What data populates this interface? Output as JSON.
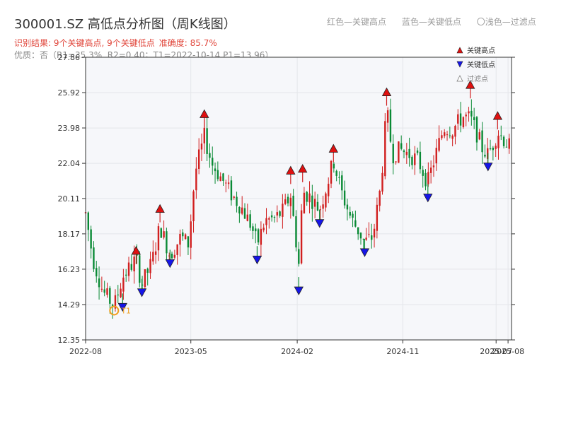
{
  "header": {
    "title": "300001.SZ 高低点分析图（周K线图）",
    "result": "识别结果: 9个关键高点, 9个关键低点",
    "accuracy": "准确度: 85.7%",
    "quality": "优质：否（R1=35.3%, R2=0.40；T1=2022-10-14 P1=13.96）",
    "legend_red": "红色—关键高点",
    "legend_blue": "蓝色—关键低点",
    "legend_light": "〇浅色—过滤点"
  },
  "colors": {
    "up": "#d11f1f",
    "down": "#0a8a35",
    "high_marker": "#e01010",
    "low_marker": "#1515e8",
    "t1": "#f0a020",
    "plot_bg": "#f6f7fa"
  },
  "chart_data": {
    "type": "candlestick",
    "x_tick_labels": [
      "2022-08",
      "2023-05",
      "2024-02",
      "2024-11",
      "2025-07",
      "2025-08"
    ],
    "y_tick_labels": [
      "12.35",
      "14.29",
      "16.23",
      "18.17",
      "20.11",
      "22.04",
      "23.98",
      "25.92",
      "27.86"
    ],
    "ylim": [
      12.35,
      27.86
    ],
    "x_range": [
      "2022-08-01",
      "2025-08-10"
    ],
    "t1_label": "T1",
    "t1_point": {
      "date": "2022-10-14",
      "price": 13.96
    },
    "legend": {
      "high": "关键高点",
      "low": "关键低点",
      "filtered": "过滤点"
    },
    "key_highs": [
      {
        "date": "2022-12-10",
        "price": 17.2
      },
      {
        "date": "2023-02-10",
        "price": 19.5
      },
      {
        "date": "2023-06-05",
        "price": 24.7
      },
      {
        "date": "2024-01-15",
        "price": 21.6
      },
      {
        "date": "2024-02-15",
        "price": 21.7
      },
      {
        "date": "2024-05-05",
        "price": 22.8
      },
      {
        "date": "2024-09-20",
        "price": 25.9
      },
      {
        "date": "2025-04-25",
        "price": 26.3
      },
      {
        "date": "2025-07-05",
        "price": 24.6
      }
    ],
    "key_lows": [
      {
        "date": "2022-11-05",
        "price": 14.2
      },
      {
        "date": "2022-12-25",
        "price": 15.0
      },
      {
        "date": "2023-03-08",
        "price": 16.6
      },
      {
        "date": "2023-10-20",
        "price": 16.8
      },
      {
        "date": "2024-02-05",
        "price": 15.1
      },
      {
        "date": "2024-03-30",
        "price": 18.8
      },
      {
        "date": "2024-07-25",
        "price": 17.2
      },
      {
        "date": "2025-01-05",
        "price": 20.2
      },
      {
        "date": "2025-06-10",
        "price": 21.9
      }
    ],
    "price_path": [
      [
        "2022-08-01",
        19.3
      ],
      [
        "2022-08-20",
        16.8
      ],
      [
        "2022-09-15",
        15.0
      ],
      [
        "2022-10-14",
        14.2
      ],
      [
        "2022-11-05",
        15.8
      ],
      [
        "2022-12-10",
        16.8
      ],
      [
        "2022-12-25",
        15.4
      ],
      [
        "2023-01-20",
        16.6
      ],
      [
        "2023-02-10",
        18.6
      ],
      [
        "2023-03-08",
        17.0
      ],
      [
        "2023-04-05",
        18.0
      ],
      [
        "2023-04-25",
        17.6
      ],
      [
        "2023-05-12",
        21.5
      ],
      [
        "2023-06-05",
        23.5
      ],
      [
        "2023-06-25",
        22.0
      ],
      [
        "2023-07-20",
        21.2
      ],
      [
        "2023-08-15",
        20.3
      ],
      [
        "2023-09-10",
        19.6
      ],
      [
        "2023-10-05",
        18.6
      ],
      [
        "2023-10-20",
        17.6
      ],
      [
        "2023-11-10",
        18.9
      ],
      [
        "2023-12-05",
        19.0
      ],
      [
        "2023-12-25",
        19.4
      ],
      [
        "2024-01-15",
        20.3
      ],
      [
        "2024-02-05",
        16.5
      ],
      [
        "2024-02-15",
        20.5
      ],
      [
        "2024-03-05",
        20.2
      ],
      [
        "2024-03-30",
        19.5
      ],
      [
        "2024-04-20",
        21.0
      ],
      [
        "2024-05-05",
        22.2
      ],
      [
        "2024-05-25",
        20.5
      ],
      [
        "2024-06-20",
        19.0
      ],
      [
        "2024-07-10",
        18.3
      ],
      [
        "2024-07-25",
        17.7
      ],
      [
        "2024-08-15",
        18.0
      ],
      [
        "2024-09-05",
        20.8
      ],
      [
        "2024-09-20",
        25.0
      ],
      [
        "2024-10-05",
        22.5
      ],
      [
        "2024-10-25",
        22.8
      ],
      [
        "2024-11-20",
        22.5
      ],
      [
        "2024-12-10",
        22.2
      ],
      [
        "2025-01-05",
        21.0
      ],
      [
        "2025-01-25",
        22.5
      ],
      [
        "2025-02-15",
        24.0
      ],
      [
        "2025-03-10",
        23.9
      ],
      [
        "2025-04-05",
        24.6
      ],
      [
        "2025-04-25",
        24.5
      ],
      [
        "2025-05-10",
        23.8
      ],
      [
        "2025-05-25",
        22.9
      ],
      [
        "2025-06-10",
        22.5
      ],
      [
        "2025-06-25",
        23.2
      ],
      [
        "2025-07-05",
        23.8
      ],
      [
        "2025-08-10",
        22.8
      ]
    ]
  }
}
